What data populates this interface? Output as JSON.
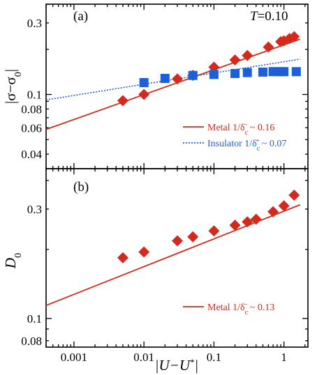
{
  "chart_data": {
    "type": "scatter",
    "xlabel": "|U−U*|",
    "x_scale": "log",
    "xlim": [
      0.0004,
      2.2
    ],
    "x_ticks": [
      {
        "v": 0.001,
        "label": "0.001"
      },
      {
        "v": 0.01,
        "label": "0.01"
      },
      {
        "v": 0.1,
        "label": "0.1"
      },
      {
        "v": 1,
        "label": "1"
      }
    ],
    "panels": [
      {
        "id": "a",
        "label": "(a)",
        "annotation": "T=0.10",
        "annotation_var": "T",
        "annotation_value": "=0.10",
        "ylabel": "|σ−σ0|",
        "ylabel_main": "|σ−σ",
        "ylabel_sub": "0",
        "ylabel_end": "|",
        "y_scale": "log",
        "ylim": [
          0.032,
          0.4
        ],
        "y_ticks": [
          {
            "v": 0.04,
            "label": "0.04"
          },
          {
            "v": 0.06,
            "label": "0.06"
          },
          {
            "v": 0.08,
            "label": "0.08"
          },
          {
            "v": 0.1,
            "label": "0.1"
          },
          {
            "v": 0.3,
            "label": "0.3"
          }
        ],
        "series": [
          {
            "name": "Metal 1/δc⁻ ~ 0.16",
            "marker": "diamond",
            "color": "#d42a1e",
            "x": [
              0.005,
              0.01,
              0.03,
              0.05,
              0.1,
              0.2,
              0.3,
              0.6,
              0.9,
              1.0,
              1.2,
              1.4
            ],
            "y": [
              0.091,
              0.1,
              0.127,
              0.134,
              0.152,
              0.17,
              0.182,
              0.207,
              0.225,
              0.228,
              0.236,
              0.243
            ]
          },
          {
            "name": "Insulator 1/δc⁺ ~ 0.07",
            "marker": "square",
            "color": "#1e5fd8",
            "x": [
              0.01,
              0.02,
              0.05,
              0.1,
              0.2,
              0.3,
              0.5,
              0.7,
              0.9,
              1.0,
              1.5
            ],
            "y": [
              0.12,
              0.128,
              0.134,
              0.136,
              0.138,
              0.14,
              0.141,
              0.142,
              0.142,
              0.142,
              0.142
            ]
          }
        ],
        "fits": [
          {
            "name": "Metal",
            "color": "#d42a1e",
            "style": "solid",
            "x": [
              0.0004,
              1.7
            ],
            "y": [
              0.0585,
              0.234
            ]
          },
          {
            "name": "Insulator",
            "color": "#1e5fd8",
            "style": "dotted",
            "x": [
              0.0004,
              1.7
            ],
            "y": [
              0.092,
              0.172
            ]
          }
        ],
        "legend": [
          {
            "prefix": "Metal 1/δ",
            "sub": "c",
            "sup": "−",
            "suffix": "~ 0.16",
            "color": "#d42a1e",
            "style": "solid"
          },
          {
            "prefix": "Insulator 1/δ",
            "sub": "c",
            "sup": "+",
            "suffix": "~ 0.07",
            "color": "#1e5fd8",
            "style": "dotted"
          }
        ]
      },
      {
        "id": "b",
        "label": "(b)",
        "ylabel": "D0",
        "ylabel_main": "D",
        "ylabel_sub": "0",
        "y_scale": "log",
        "ylim": [
          0.075,
          0.45
        ],
        "y_ticks": [
          {
            "v": 0.08,
            "label": "0.08"
          },
          {
            "v": 0.1,
            "label": "0.1"
          },
          {
            "v": 0.3,
            "label": "0.3"
          }
        ],
        "series": [
          {
            "name": "Metal 1/δc⁻ ~ 0.13",
            "marker": "diamond",
            "color": "#d42a1e",
            "x": [
              0.005,
              0.01,
              0.03,
              0.05,
              0.1,
              0.2,
              0.3,
              0.4,
              0.7,
              1.0,
              1.4
            ],
            "y": [
              0.184,
              0.195,
              0.218,
              0.227,
              0.241,
              0.255,
              0.264,
              0.271,
              0.292,
              0.31,
              0.345
            ]
          }
        ],
        "fits": [
          {
            "name": "Metal",
            "color": "#d42a1e",
            "style": "solid",
            "x": [
              0.0004,
              1.7
            ],
            "y": [
              0.114,
              0.3133
            ]
          }
        ],
        "legend": [
          {
            "prefix": "Metal 1/δ",
            "sub": "c",
            "sup": "−",
            "suffix": "~ 0.13",
            "color": "#d42a1e",
            "style": "solid"
          }
        ]
      }
    ]
  }
}
